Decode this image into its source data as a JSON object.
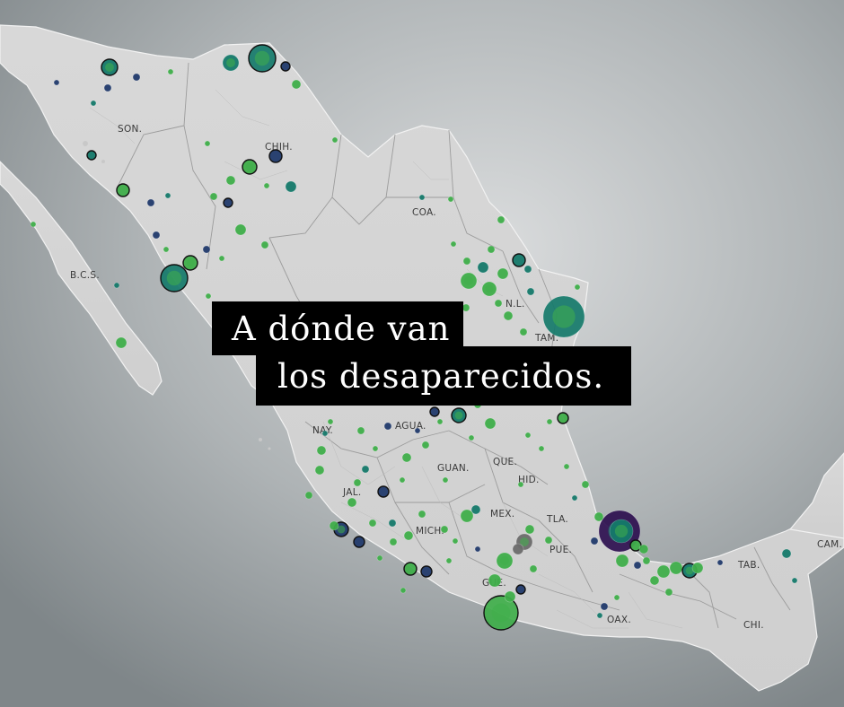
{
  "title": {
    "line1": "A dónde van",
    "line2": "los desaparecidos."
  },
  "colors": {
    "land": "#d2d2d2",
    "land_stroke": "#ffffff",
    "sea_center": "#d7d9da",
    "sea_edge": "#7d8487",
    "dot_teal": "#15796a",
    "dot_green": "#3fae4a",
    "dot_lime": "#8cc63f",
    "dot_navy": "#213a6b",
    "dot_purple": "#2d0f4f",
    "dot_gray": "#6b6b6b",
    "title_bg": "#000000",
    "title_text": "#ffffff"
  },
  "state_labels": {
    "son": "SON.",
    "chih": "CHIH.",
    "coa": "COA.",
    "bcs": "B.C.S.",
    "nl": "N.L.",
    "tam": "TAM.",
    "nay": "NAY.",
    "agua": "AGUA.",
    "que": "QUE.",
    "guan": "GUAN.",
    "hid": "HID.",
    "jal": "JAL.",
    "mex": "MEX.",
    "tla": "TLA.",
    "mich": "MICH.",
    "pue": "PUE.",
    "gue": "GUE.",
    "oax": "OAX.",
    "tab": "TAB.",
    "cam": "CAM.",
    "chi": "CHI."
  }
}
